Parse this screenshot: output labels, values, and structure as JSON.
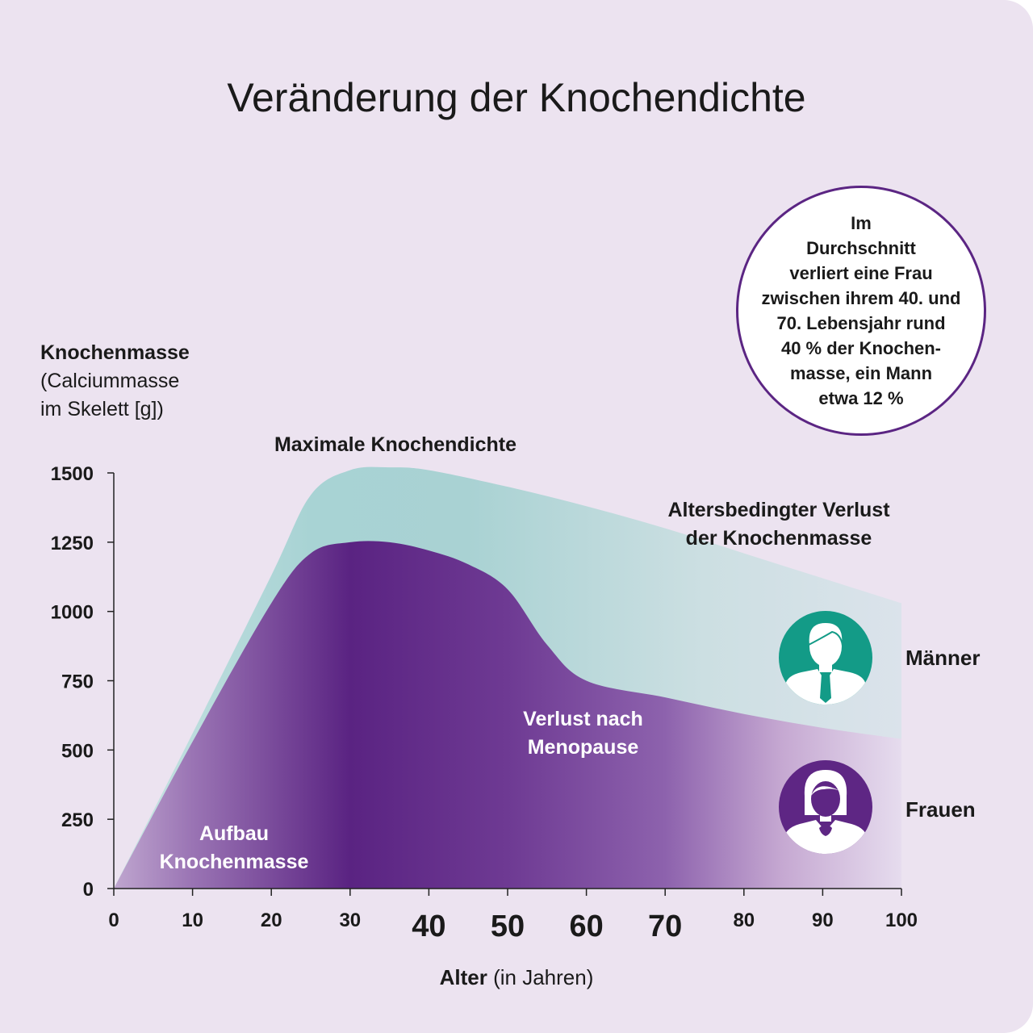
{
  "chart_data": {
    "type": "area",
    "title": "Veränderung der Knochendichte",
    "ylabel_main": "Knochenmasse",
    "ylabel_sub_line1": "(Calciummasse",
    "ylabel_sub_line2": "im Skelett [g])",
    "xlabel_main": "Alter",
    "xlabel_sub": "(in Jahren)",
    "xlim": [
      0,
      100
    ],
    "ylim": [
      0,
      1500
    ],
    "x_ticks": [
      {
        "value": 0,
        "label": "0",
        "emphasis": false
      },
      {
        "value": 10,
        "label": "10",
        "emphasis": false
      },
      {
        "value": 20,
        "label": "20",
        "emphasis": false
      },
      {
        "value": 30,
        "label": "30",
        "emphasis": false
      },
      {
        "value": 40,
        "label": "40",
        "emphasis": true
      },
      {
        "value": 50,
        "label": "50",
        "emphasis": true
      },
      {
        "value": 60,
        "label": "60",
        "emphasis": true
      },
      {
        "value": 70,
        "label": "70",
        "emphasis": true
      },
      {
        "value": 80,
        "label": "80",
        "emphasis": false
      },
      {
        "value": 90,
        "label": "90",
        "emphasis": false
      },
      {
        "value": 100,
        "label": "100",
        "emphasis": false
      }
    ],
    "y_ticks": [
      {
        "value": 0,
        "label": "0"
      },
      {
        "value": 250,
        "label": "250"
      },
      {
        "value": 500,
        "label": "500"
      },
      {
        "value": 750,
        "label": "750"
      },
      {
        "value": 1000,
        "label": "1000"
      },
      {
        "value": 1250,
        "label": "1250"
      },
      {
        "value": 1500,
        "label": "1500"
      }
    ],
    "series": [
      {
        "name": "Männer",
        "color": "#a9d3d4",
        "x": [
          0,
          10,
          20,
          25,
          30,
          35,
          40,
          50,
          60,
          70,
          80,
          90,
          100
        ],
        "y": [
          0,
          560,
          1130,
          1420,
          1510,
          1520,
          1510,
          1450,
          1380,
          1300,
          1210,
          1120,
          1030
        ]
      },
      {
        "name": "Frauen",
        "color": "#5e2684",
        "x": [
          0,
          10,
          20,
          25,
          30,
          35,
          40,
          45,
          50,
          55,
          60,
          70,
          80,
          90,
          100
        ],
        "y": [
          0,
          530,
          1030,
          1210,
          1250,
          1250,
          1220,
          1170,
          1080,
          880,
          750,
          690,
          630,
          580,
          540
        ]
      }
    ],
    "annotations": {
      "peak": "Maximale Knochendichte",
      "loss": "Altersbedingter Verlust\nder Knochenmasse",
      "menopause": "Verlust nach\nMenopause",
      "buildup": "Aufbau\nKnochenmasse"
    },
    "callout": "Im\nDurchschnitt\nverliert eine Frau\nzwischen ihrem 40. und\n70. Lebensjahr rund\n40 % der Knochen-\nmasse, ein Mann\netwa 12 %",
    "legend": [
      {
        "label": "Männer",
        "icon": "man-avatar-icon",
        "color": "#139b87"
      },
      {
        "label": "Frauen",
        "icon": "woman-avatar-icon",
        "color": "#5e2684"
      }
    ],
    "grid": false,
    "legend_placement": "right"
  }
}
